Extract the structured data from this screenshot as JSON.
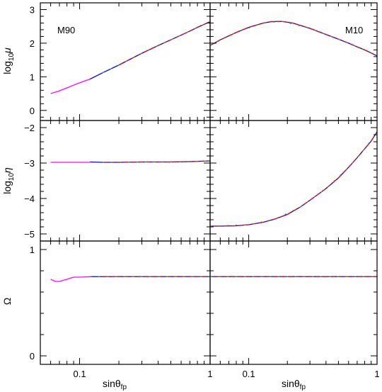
{
  "figure": {
    "xlabel": "sinθfp",
    "xlabel_main": "sinθ",
    "xlabel_sub": "fp"
  },
  "chart_data": [
    {
      "type": "line",
      "panel": "left",
      "row": 0,
      "title": "",
      "annotation": "M90",
      "xlabel": "",
      "ylabel": "log10μ",
      "ylabel_main": "log",
      "ylabel_sub": "10",
      "ylabel_sym": "μ",
      "x_scale": "log",
      "xlim": [
        0.05,
        1.0
      ],
      "ylim": [
        -0.3,
        3.2
      ],
      "yticks": [
        0,
        1,
        2,
        3
      ],
      "yticklabels": [
        "0",
        "1",
        "2",
        "3"
      ],
      "series": [
        {
          "color": "#ff00ff",
          "x": [
            0.06,
            0.07,
            0.08,
            0.09,
            0.1,
            0.12
          ],
          "y": [
            0.5,
            0.58,
            0.67,
            0.75,
            0.82,
            0.93
          ]
        },
        {
          "color": "#0000ff",
          "x": [
            0.12,
            0.15,
            0.2,
            0.3,
            0.4,
            0.5,
            0.6,
            0.7,
            0.8,
            0.9,
            1.0
          ],
          "y": [
            0.93,
            1.12,
            1.35,
            1.7,
            1.93,
            2.1,
            2.24,
            2.36,
            2.47,
            2.56,
            2.64
          ]
        },
        {
          "color": "#ff0000",
          "dash": "6,4",
          "x": [
            0.2,
            0.3,
            0.4,
            0.5,
            0.6,
            0.7,
            0.8,
            0.9,
            1.0
          ],
          "y": [
            1.35,
            1.7,
            1.93,
            2.1,
            2.24,
            2.36,
            2.47,
            2.56,
            2.64
          ]
        },
        {
          "color": "#00cc00",
          "dash": "2,10",
          "x": [
            0.15,
            0.2,
            0.3,
            0.5,
            0.7,
            1.0
          ],
          "y": [
            1.12,
            1.35,
            1.7,
            2.1,
            2.36,
            2.64
          ]
        }
      ]
    },
    {
      "type": "line",
      "panel": "right",
      "row": 0,
      "title": "",
      "annotation": "M10",
      "xlabel": "",
      "ylabel": "",
      "x_scale": "log",
      "xlim": [
        0.05,
        1.0
      ],
      "ylim": [
        -0.3,
        3.2
      ],
      "yticks": [
        0,
        1,
        2,
        3
      ],
      "series": [
        {
          "color": "#0000ff",
          "x": [
            0.05,
            0.06,
            0.08,
            0.1,
            0.13,
            0.15,
            0.18,
            0.22,
            0.3,
            0.4,
            0.5,
            0.6,
            0.7,
            0.8,
            0.9,
            1.0
          ],
          "y": [
            1.93,
            2.1,
            2.32,
            2.47,
            2.6,
            2.64,
            2.65,
            2.6,
            2.44,
            2.26,
            2.12,
            2.0,
            1.89,
            1.8,
            1.71,
            1.62
          ]
        },
        {
          "color": "#ff0000",
          "dash": "6,4",
          "x": [
            0.05,
            0.06,
            0.08,
            0.1,
            0.13,
            0.15,
            0.18,
            0.22,
            0.3,
            0.4,
            0.5,
            0.6,
            0.7,
            0.8,
            0.9,
            1.0
          ],
          "y": [
            1.93,
            2.1,
            2.32,
            2.47,
            2.6,
            2.64,
            2.65,
            2.6,
            2.44,
            2.26,
            2.12,
            2.0,
            1.89,
            1.8,
            1.71,
            1.62
          ]
        },
        {
          "color": "#00cc00",
          "dash": "2,10",
          "x": [
            0.05,
            0.08,
            0.13,
            0.18,
            0.3,
            0.5,
            0.7,
            1.0
          ],
          "y": [
            1.93,
            2.32,
            2.6,
            2.65,
            2.44,
            2.12,
            1.89,
            1.62
          ]
        }
      ]
    },
    {
      "type": "line",
      "panel": "left",
      "row": 1,
      "title": "",
      "annotation": "",
      "xlabel": "",
      "ylabel": "log10η",
      "ylabel_main": "log",
      "ylabel_sub": "10",
      "ylabel_sym": "η",
      "x_scale": "log",
      "xlim": [
        0.05,
        1.0
      ],
      "ylim": [
        -5.2,
        -1.8
      ],
      "y_inverted": true,
      "yticks": [
        -2,
        -3,
        -4,
        -5
      ],
      "yticklabels": [
        "−2",
        "−3",
        "−4",
        "−5"
      ],
      "series": [
        {
          "color": "#ff00ff",
          "x": [
            0.06,
            0.08,
            0.1,
            0.12
          ],
          "y": [
            -2.98,
            -2.98,
            -2.98,
            -2.98
          ]
        },
        {
          "color": "#0000ff",
          "x": [
            0.12,
            0.15,
            0.2,
            0.3,
            0.5,
            0.7,
            1.0
          ],
          "y": [
            -2.97,
            -2.98,
            -2.98,
            -2.97,
            -2.97,
            -2.96,
            -2.94
          ]
        },
        {
          "color": "#ff0000",
          "dash": "6,4",
          "x": [
            0.15,
            0.2,
            0.3,
            0.5,
            0.7,
            1.0
          ],
          "y": [
            -2.98,
            -2.98,
            -2.97,
            -2.97,
            -2.96,
            -2.94
          ]
        },
        {
          "color": "#00cc00",
          "dash": "2,10",
          "x": [
            0.15,
            0.3,
            0.6,
            1.0
          ],
          "y": [
            -2.98,
            -2.97,
            -2.96,
            -2.94
          ]
        }
      ]
    },
    {
      "type": "line",
      "panel": "right",
      "row": 1,
      "title": "",
      "annotation": "",
      "xlabel": "",
      "ylabel": "",
      "x_scale": "log",
      "xlim": [
        0.05,
        1.0
      ],
      "ylim": [
        -5.2,
        -1.8
      ],
      "y_inverted": true,
      "yticks": [
        -2,
        -3,
        -4,
        -5
      ],
      "series": [
        {
          "color": "#0000ff",
          "x": [
            0.05,
            0.06,
            0.08,
            0.1,
            0.13,
            0.16,
            0.2,
            0.25,
            0.3,
            0.4,
            0.5,
            0.6,
            0.7,
            0.8,
            0.9,
            1.0
          ],
          "y": [
            -4.78,
            -4.78,
            -4.77,
            -4.74,
            -4.67,
            -4.58,
            -4.45,
            -4.25,
            -4.05,
            -3.72,
            -3.42,
            -3.12,
            -2.85,
            -2.6,
            -2.38,
            -2.12
          ]
        },
        {
          "color": "#ff0000",
          "dash": "6,4",
          "x": [
            0.05,
            0.06,
            0.08,
            0.1,
            0.13,
            0.16,
            0.2,
            0.25,
            0.3,
            0.4,
            0.5,
            0.6,
            0.7,
            0.8,
            0.9,
            1.0
          ],
          "y": [
            -4.78,
            -4.78,
            -4.77,
            -4.74,
            -4.67,
            -4.58,
            -4.45,
            -4.25,
            -4.05,
            -3.72,
            -3.42,
            -3.12,
            -2.85,
            -2.6,
            -2.38,
            -2.12
          ]
        },
        {
          "color": "#00cc00",
          "dash": "2,10",
          "x": [
            0.05,
            0.1,
            0.16,
            0.25,
            0.4,
            0.6,
            0.8,
            1.0
          ],
          "y": [
            -4.78,
            -4.74,
            -4.58,
            -4.25,
            -3.72,
            -3.12,
            -2.6,
            -2.12
          ]
        }
      ]
    },
    {
      "type": "line",
      "panel": "left",
      "row": 2,
      "title": "",
      "annotation": "",
      "xlabel": "sinθfp",
      "ylabel": "Ω",
      "x_scale": "log",
      "xlim": [
        0.05,
        1.0
      ],
      "ylim": [
        -0.08,
        1.08
      ],
      "yticks": [
        0,
        1
      ],
      "yticklabels": [
        "0",
        "1"
      ],
      "xticks": [
        0.1,
        1
      ],
      "xticklabels": [
        "0.1",
        "1"
      ],
      "series": [
        {
          "color": "#ff00ff",
          "x": [
            0.06,
            0.065,
            0.07,
            0.08,
            0.09,
            0.1,
            0.12
          ],
          "y": [
            0.72,
            0.7,
            0.7,
            0.72,
            0.74,
            0.74,
            0.745
          ]
        },
        {
          "color": "#0000ff",
          "x": [
            0.12,
            0.15,
            0.2,
            0.3,
            0.5,
            0.7,
            1.0
          ],
          "y": [
            0.745,
            0.745,
            0.745,
            0.745,
            0.745,
            0.745,
            0.745
          ]
        },
        {
          "color": "#ff0000",
          "dash": "6,4",
          "x": [
            0.15,
            0.3,
            0.6,
            1.0
          ],
          "y": [
            0.745,
            0.745,
            0.745,
            0.745
          ]
        },
        {
          "color": "#00cc00",
          "dash": "2,10",
          "x": [
            0.12,
            0.3,
            0.6,
            1.0
          ],
          "y": [
            0.745,
            0.745,
            0.745,
            0.745
          ]
        }
      ]
    },
    {
      "type": "line",
      "panel": "right",
      "row": 2,
      "title": "",
      "annotation": "",
      "xlabel": "sinθfp",
      "ylabel": "",
      "x_scale": "log",
      "xlim": [
        0.05,
        1.0
      ],
      "ylim": [
        -0.08,
        1.08
      ],
      "yticks": [
        0,
        1
      ],
      "xticks": [
        0.1,
        1
      ],
      "xticklabels": [
        "0.1",
        "1"
      ],
      "series": [
        {
          "color": "#0000ff",
          "x": [
            0.05,
            0.1,
            0.2,
            0.4,
            0.7,
            1.0
          ],
          "y": [
            0.745,
            0.745,
            0.745,
            0.745,
            0.745,
            0.745
          ]
        },
        {
          "color": "#ff0000",
          "dash": "6,4",
          "x": [
            0.05,
            0.1,
            0.2,
            0.4,
            0.7,
            1.0
          ],
          "y": [
            0.745,
            0.745,
            0.745,
            0.745,
            0.745,
            0.745
          ]
        },
        {
          "color": "#00cc00",
          "dash": "2,10",
          "x": [
            0.05,
            0.2,
            0.6,
            1.0
          ],
          "y": [
            0.745,
            0.745,
            0.745,
            0.745
          ]
        }
      ]
    }
  ]
}
